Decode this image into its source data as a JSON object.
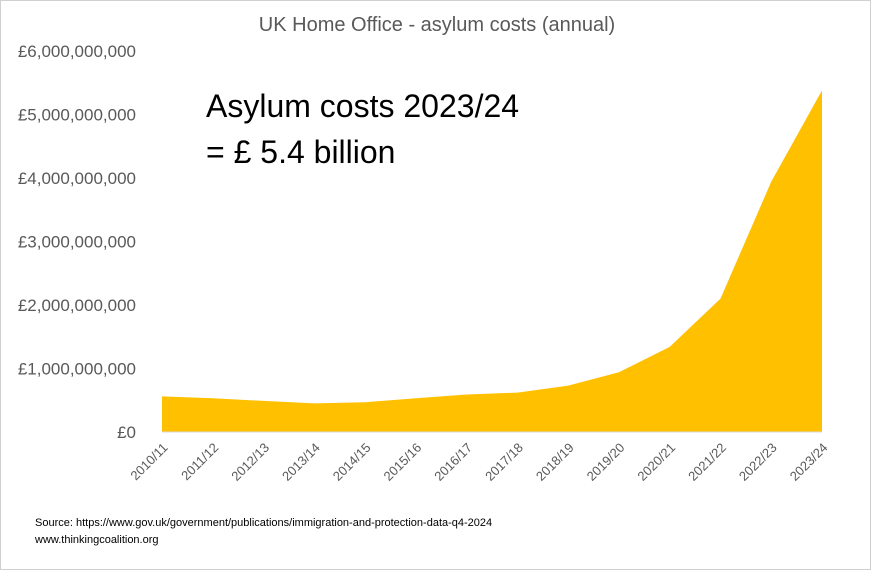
{
  "chart_data": {
    "type": "area",
    "title": "UK Home Office - asylum costs (annual)",
    "xlabel": "",
    "ylabel": "",
    "categories": [
      "2010/11",
      "2011/12",
      "2012/13",
      "2013/14",
      "2014/15",
      "2015/16",
      "2016/17",
      "2017/18",
      "2018/19",
      "2019/20",
      "2020/21",
      "2021/22",
      "2022/23",
      "2023/24"
    ],
    "values": [
      560000000,
      530000000,
      490000000,
      450000000,
      470000000,
      530000000,
      590000000,
      620000000,
      730000000,
      940000000,
      1340000000,
      2100000000,
      3940000000,
      5380000000
    ],
    "ylim": [
      0,
      6000000000
    ],
    "yticks": [
      "£0",
      "£1,000,000,000",
      "£2,000,000,000",
      "£3,000,000,000",
      "£4,000,000,000",
      "£5,000,000,000",
      "£6,000,000,000"
    ],
    "grid": false,
    "legend": "none",
    "fill_color": "#FFC000",
    "annotation": [
      "Asylum costs 2023/24",
      "= £ 5.4 billion"
    ]
  },
  "source_line": "Source:  https://www.gov.uk/government/publications/immigration-and-protection-data-q4-2024",
  "website": "www.thinkingcoalition.org"
}
